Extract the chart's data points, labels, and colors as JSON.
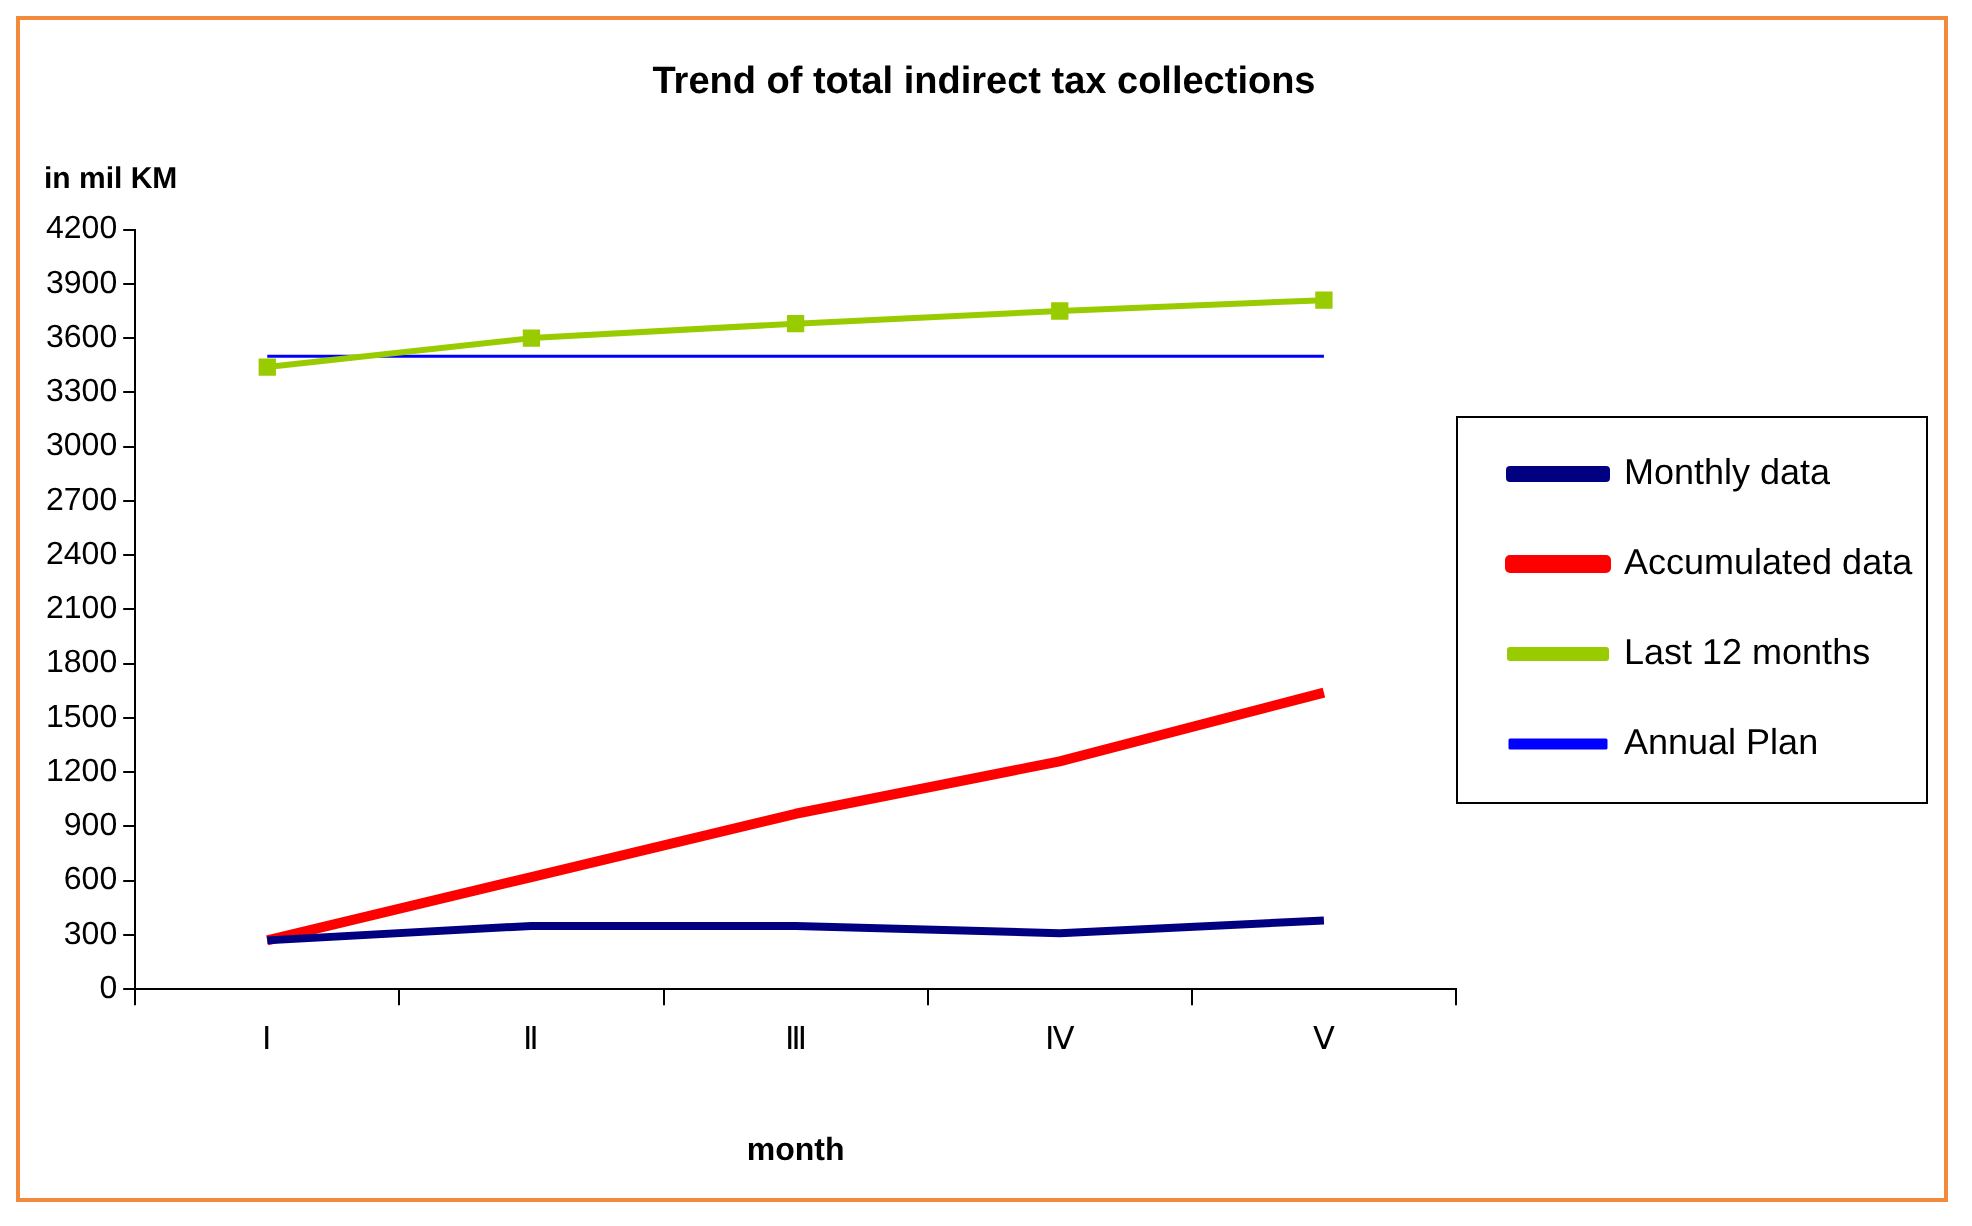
{
  "chart_data": {
    "type": "line",
    "title": "Trend of total indirect tax collections",
    "ylabel": "in mil KM",
    "xlabel": "month",
    "categories": [
      "Ⅰ",
      "Ⅱ",
      "Ⅲ",
      "Ⅳ",
      "Ⅴ"
    ],
    "series": [
      {
        "name": "Monthly data",
        "color": "#000080",
        "values": [
          270,
          350,
          350,
          310,
          380
        ],
        "marker": "none"
      },
      {
        "name": "Accumulated data",
        "color": "#ff0000",
        "values": [
          270,
          620,
          970,
          1260,
          1640
        ],
        "marker": "none"
      },
      {
        "name": "Last 12 months",
        "color": "#99cc00",
        "values": [
          3440,
          3600,
          3680,
          3750,
          3810
        ],
        "marker": "square"
      },
      {
        "name": "Annual Plan",
        "color": "#0000ff",
        "values": [
          3500,
          3500,
          3500,
          3500,
          3500
        ],
        "marker": "none"
      }
    ],
    "ylim": [
      0,
      4200
    ],
    "yticks": [
      0,
      300,
      600,
      900,
      1200,
      1500,
      1800,
      2100,
      2400,
      2700,
      3000,
      3300,
      3600,
      3900,
      4200
    ],
    "grid": false,
    "legend": "right"
  }
}
